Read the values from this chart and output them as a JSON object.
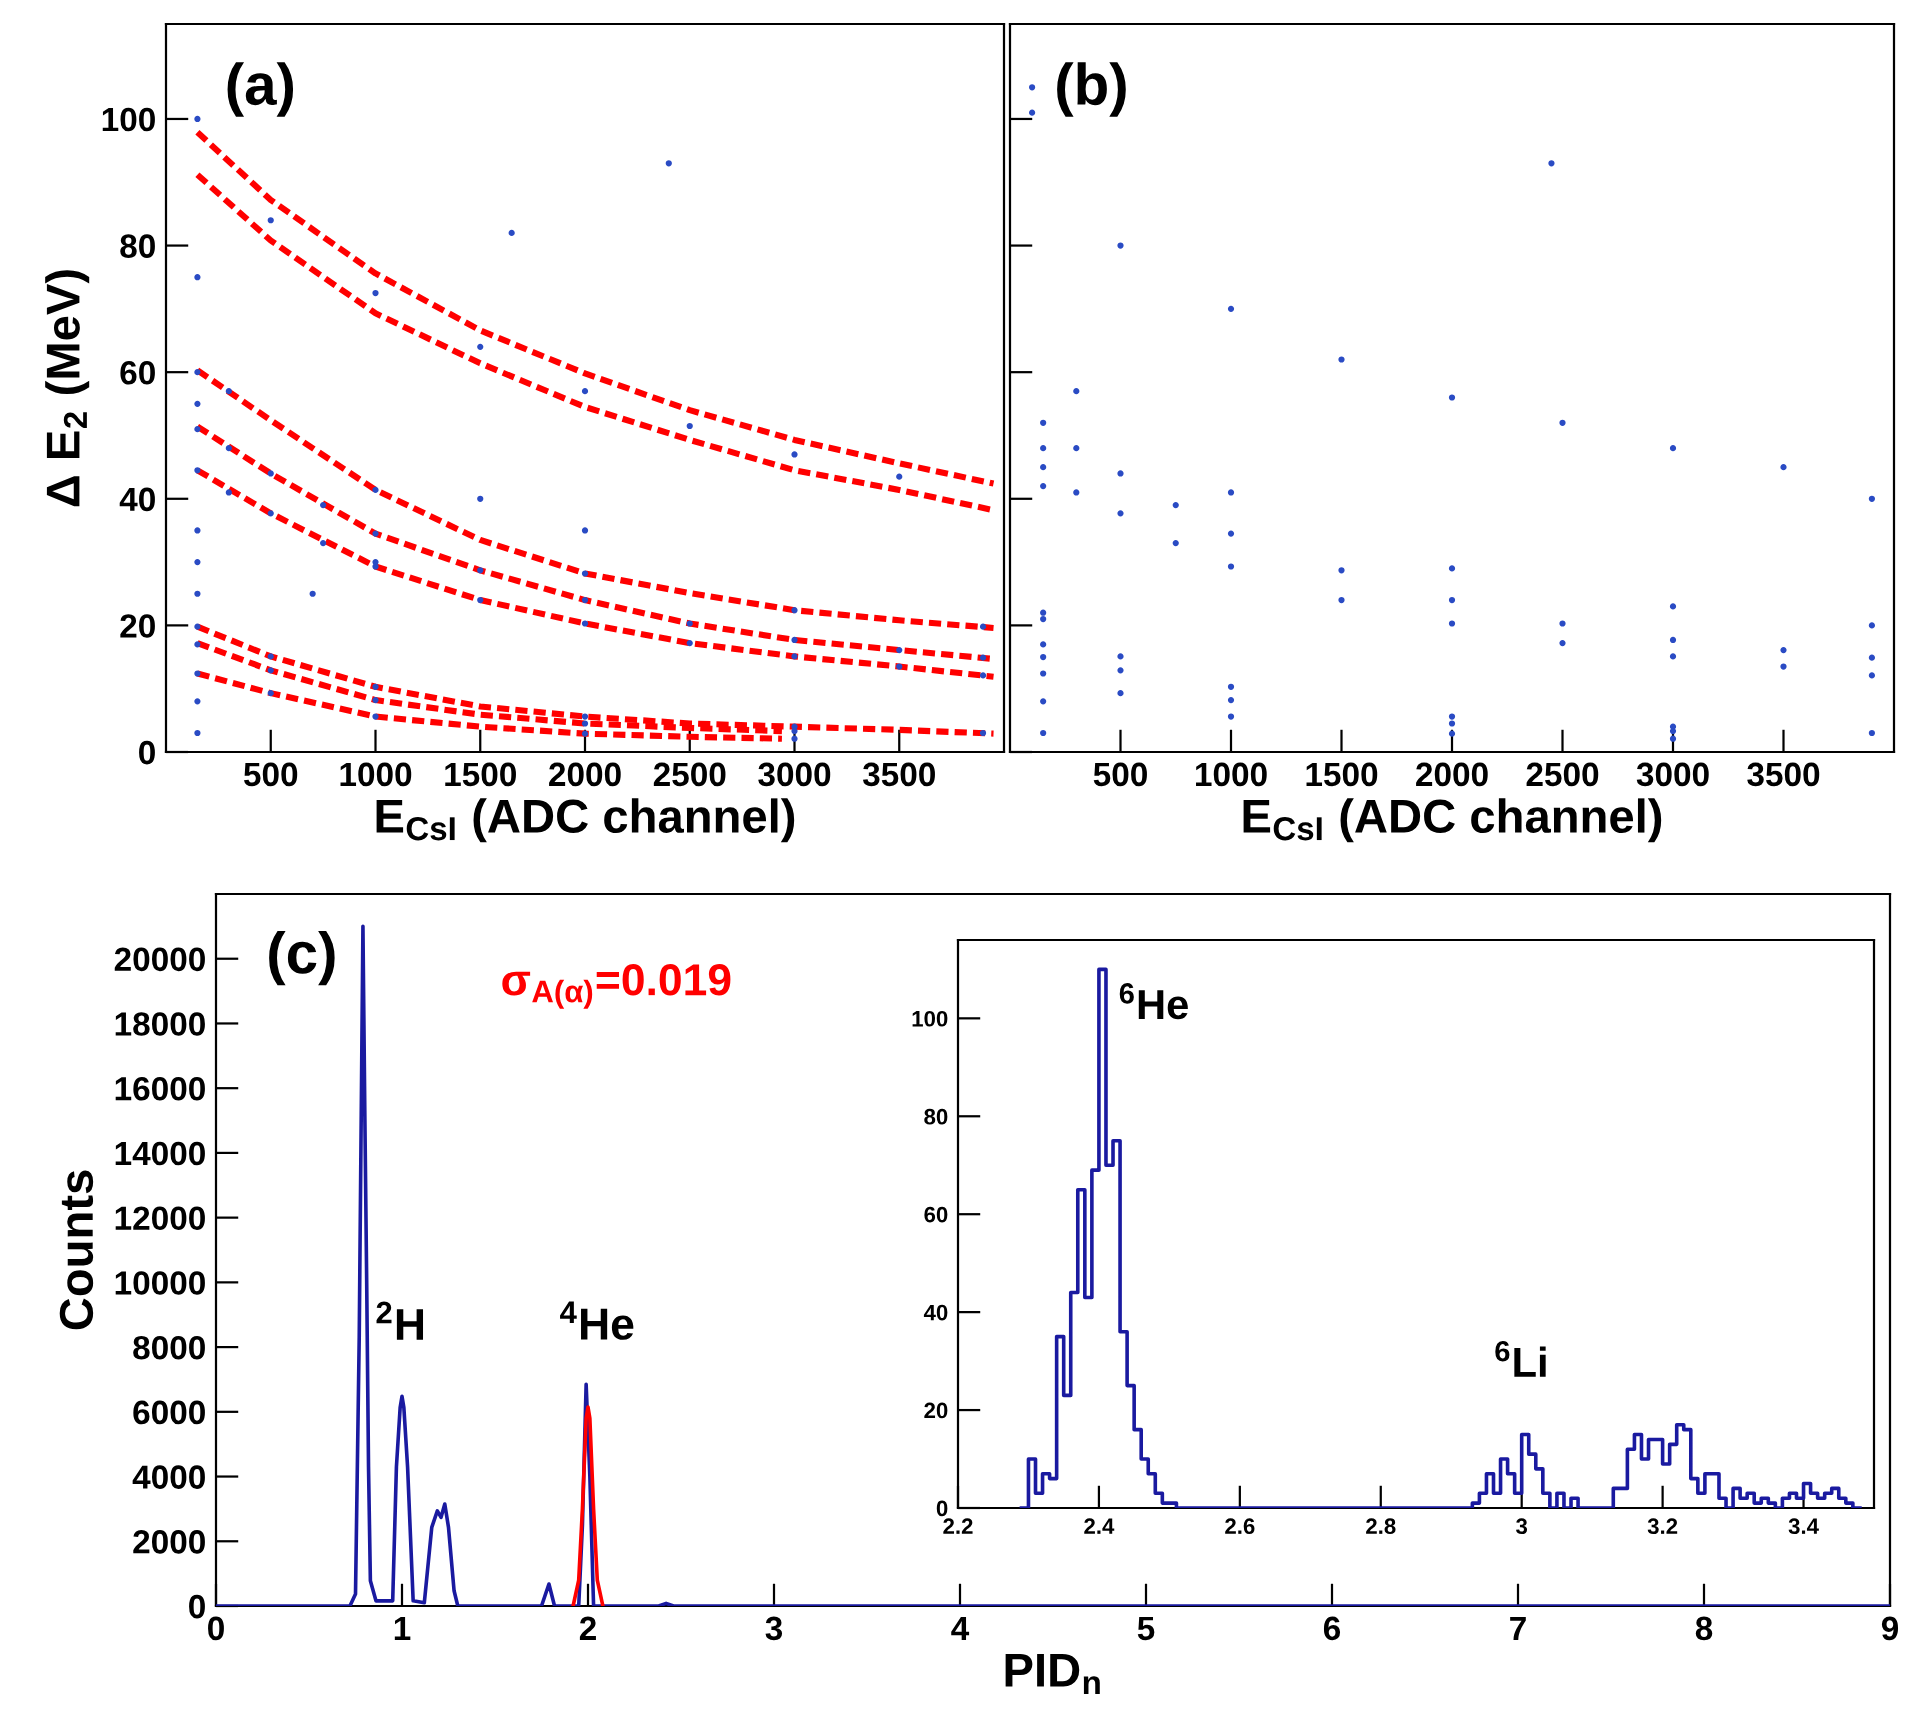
{
  "chart_data": [
    {
      "type": "scatter",
      "xlabel": "E$_{CsI}$ (ADC channel)",
      "ylabel": "Δ E$_{2}$ (MeV)",
      "annotations": [
        "(a)"
      ],
      "xlim": [
        0,
        4000
      ],
      "xticks": [
        500,
        1000,
        1500,
        2000,
        2500,
        3000,
        3500
      ],
      "ylim": [
        0,
        115
      ],
      "yticks": [
        0,
        20,
        40,
        60,
        80,
        100
      ],
      "series": [
        {
          "color": "#2a4bc4",
          "x": [
            150,
            300,
            500,
            750,
            1000,
            1500,
            2000,
            2500,
            3000,
            3500,
            3900,
            150,
            300,
            500,
            750,
            1000,
            1500,
            2000,
            2500,
            3000,
            3500,
            3900,
            300,
            1000,
            2000,
            3000,
            3900,
            500,
            1000,
            1500,
            2000,
            2500,
            3000,
            3500,
            150,
            500,
            1000,
            2000,
            3000,
            3900,
            150,
            500,
            1000,
            2000,
            3000,
            150,
            500,
            1000,
            2000,
            3000,
            150,
            150,
            150,
            150,
            150,
            150,
            150,
            150,
            150,
            2400,
            1650,
            1000,
            700,
            1500,
            2000
          ],
          "values": [
            51,
            48,
            44,
            39,
            34.5,
            28.7,
            24,
            20.3,
            17.7,
            16.1,
            14.9,
            44.5,
            41,
            37.7,
            33,
            29.3,
            24,
            20.3,
            17.2,
            15.1,
            13.5,
            12.1,
            57,
            41.4,
            28.2,
            22.4,
            19.8,
            84,
            72.5,
            64,
            57,
            51.5,
            47,
            43.5,
            19.8,
            15.1,
            10.3,
            5.6,
            4,
            3,
            17,
            12.9,
            8.2,
            4.5,
            3.3,
            12.4,
            9.3,
            5.6,
            2.9,
            2.1,
            3,
            8,
            25,
            30,
            35,
            55,
            60,
            75,
            100,
            93,
            82,
            30,
            25,
            40,
            35
          ]
        },
        {
          "type": "line",
          "line_style": "dashed",
          "color": "#ff0000",
          "x": [
            150,
            500,
            1000,
            1500,
            2000,
            2500,
            3000,
            3500,
            3950
          ],
          "values": [
            97.9,
            87.2,
            75.6,
            66.6,
            59.8,
            54,
            49.3,
            45.6,
            42.4
          ]
        },
        {
          "type": "line",
          "line_style": "dashed",
          "color": "#ff0000",
          "x": [
            150,
            500,
            1000,
            1500,
            2000,
            2500,
            3000,
            3500,
            3950
          ],
          "values": [
            91.2,
            80.8,
            69.3,
            61.4,
            54.5,
            49.3,
            44.5,
            41.4,
            38.2
          ]
        },
        {
          "type": "line",
          "line_style": "dashed",
          "color": "#ff0000",
          "x": [
            150,
            500,
            1000,
            1500,
            2000,
            2500,
            3000,
            3500,
            3950
          ],
          "values": [
            60.3,
            52.4,
            41.4,
            33.5,
            28.2,
            25.1,
            22.4,
            20.8,
            19.6
          ]
        },
        {
          "type": "line",
          "line_style": "dashed",
          "color": "#ff0000",
          "x": [
            150,
            500,
            1000,
            1500,
            2000,
            2500,
            3000,
            3500,
            3950
          ],
          "values": [
            51.4,
            44,
            34.5,
            28.7,
            24,
            20.3,
            17.7,
            16.1,
            14.7
          ]
        },
        {
          "type": "line",
          "line_style": "dashed",
          "color": "#ff0000",
          "x": [
            150,
            500,
            1000,
            1500,
            2000,
            2500,
            3000,
            3500,
            3950
          ],
          "values": [
            44.5,
            37.7,
            29.3,
            24,
            20.3,
            17.2,
            15.1,
            13.5,
            11.9
          ]
        },
        {
          "type": "line",
          "line_style": "dashed",
          "color": "#ff0000",
          "x": [
            150,
            500,
            1000,
            1500,
            2000,
            2500,
            3000,
            3500,
            3950
          ],
          "values": [
            19.8,
            15.1,
            10.3,
            7.2,
            5.6,
            4.5,
            4,
            3.5,
            2.9
          ]
        },
        {
          "type": "line",
          "line_style": "dashed",
          "color": "#ff0000",
          "x": [
            150,
            500,
            1000,
            1500,
            2000,
            2500,
            2940
          ],
          "values": [
            17.2,
            12.9,
            8.2,
            5.9,
            4.5,
            3.8,
            3.3
          ]
        },
        {
          "type": "line",
          "line_style": "dashed",
          "color": "#ff0000",
          "x": [
            150,
            500,
            1000,
            1500,
            2000,
            2500,
            2940
          ],
          "values": [
            12.4,
            9.3,
            5.6,
            4,
            2.9,
            2.4,
            2.1
          ]
        }
      ]
    },
    {
      "type": "scatter",
      "xlabel": "E$_{CsI}$ (ADC channel)",
      "annotations": [
        "(b)"
      ],
      "tick_labels": "x",
      "xlim": [
        0,
        4000
      ],
      "xticks": [
        500,
        1000,
        1500,
        2000,
        2500,
        3000,
        3500
      ],
      "ylim": [
        0,
        115
      ],
      "yticks": [
        0,
        20,
        40,
        60,
        80,
        100
      ],
      "series": [
        {
          "color": "#2a4bc4",
          "x": [
            150,
            300,
            500,
            750,
            1000,
            1500,
            2000,
            2500,
            3000,
            3500,
            3900,
            150,
            300,
            500,
            750,
            1000,
            1500,
            2000,
            2500,
            3000,
            3500,
            3900,
            300,
            1000,
            2000,
            3000,
            3900,
            500,
            1000,
            1500,
            2000,
            2500,
            3000,
            3500,
            3900,
            150,
            500,
            1000,
            2000,
            3000,
            3900,
            150,
            500,
            1000,
            2000,
            3000,
            150,
            500,
            1000,
            2000,
            3000,
            150,
            150,
            150,
            150,
            150,
            150,
            100,
            100,
            2450
          ],
          "values": [
            52,
            48,
            44,
            39,
            34.5,
            28.7,
            24,
            20.3,
            17.7,
            16.1,
            14.9,
            45,
            41,
            37.7,
            33,
            29.3,
            24,
            20.3,
            17.2,
            15.1,
            13.5,
            12.1,
            57,
            41,
            29,
            23,
            20,
            80,
            70,
            62,
            56,
            52,
            48,
            45,
            40,
            21,
            15.1,
            10.3,
            5.6,
            4,
            3,
            17,
            12.9,
            8.2,
            4.5,
            3.3,
            12.4,
            9.3,
            5.6,
            2.9,
            2.1,
            3,
            8,
            15,
            22,
            42,
            48,
            105,
            101,
            93
          ]
        }
      ]
    },
    {
      "type": "line",
      "xlabel": "PID$_{n}$",
      "ylabel": "Counts",
      "annotations": [
        "(c)",
        "σ$_{A(α)}$=0.019",
        "$^{2}$H",
        "$^{4}$He"
      ],
      "xlim": [
        0,
        9
      ],
      "xticks": [
        0,
        1,
        2,
        3,
        4,
        5,
        6,
        7,
        8,
        9
      ],
      "ylim": [
        0,
        22000
      ],
      "yticks": [
        0,
        2000,
        4000,
        6000,
        8000,
        10000,
        12000,
        14000,
        16000,
        18000,
        20000
      ],
      "series": [
        {
          "color": "#1a1aa0",
          "x": [
            0,
            0.7,
            0.72,
            0.75,
            0.77,
            0.79,
            0.8,
            0.81,
            0.82,
            0.83,
            0.86,
            0.95,
            0.97,
            0.99,
            1.0,
            1.01,
            1.03,
            1.06,
            1.12,
            1.16,
            1.19,
            1.21,
            1.23,
            1.25,
            1.28,
            1.3,
            1.75,
            1.79,
            1.82,
            1.95,
            1.97,
            1.99,
            2.01,
            2.03,
            2.38,
            2.42,
            2.46,
            9
          ],
          "values": [
            0,
            0,
            0,
            370,
            8300,
            21000,
            15300,
            10100,
            4300,
            780,
            160,
            160,
            4300,
            6130,
            6480,
            6130,
            4300,
            160,
            100,
            2430,
            2940,
            2740,
            3150,
            2430,
            470,
            0,
            0,
            680,
            0,
            0,
            2500,
            6850,
            4000,
            0,
            0,
            80,
            0,
            0
          ]
        },
        {
          "color": "#ff0000",
          "x": [
            1.92,
            1.95,
            1.97,
            1.99,
            2.0,
            2.01,
            2.03,
            2.05,
            2.08
          ],
          "values": [
            0,
            800,
            3000,
            5800,
            6150,
            5800,
            3000,
            800,
            0
          ]
        }
      ]
    },
    {
      "type": "step",
      "annotations": [
        "$^{6}$He",
        "$^{6}$Li"
      ],
      "xlim": [
        2.2,
        3.5
      ],
      "xticks": [
        2.2,
        2.4,
        2.6,
        2.8,
        3,
        3.2,
        3.4
      ],
      "ylim": [
        0,
        116
      ],
      "yticks": [
        0,
        20,
        40,
        60,
        80,
        100
      ],
      "series": [
        {
          "color": "#1a1aa0",
          "x": [
            2.29,
            2.3,
            2.31,
            2.32,
            2.33,
            2.34,
            2.35,
            2.36,
            2.37,
            2.38,
            2.39,
            2.4,
            2.41,
            2.42,
            2.43,
            2.44,
            2.45,
            2.46,
            2.47,
            2.48,
            2.49,
            2.5,
            2.51,
            2.52,
            2.53,
            2.54,
            2.55,
            2.56,
            2.57,
            2.58,
            2.59,
            2.6,
            2.61,
            2.62,
            2.63,
            2.64,
            2.65,
            2.66,
            2.67,
            2.68,
            2.69,
            2.7,
            2.71,
            2.72,
            2.73,
            2.74,
            2.75,
            2.76,
            2.77,
            2.78,
            2.79,
            2.8,
            2.81,
            2.82,
            2.83,
            2.84,
            2.85,
            2.86,
            2.87,
            2.88,
            2.89,
            2.9,
            2.91,
            2.92,
            2.93,
            2.94,
            2.95,
            2.96,
            2.97,
            2.98,
            2.99,
            3.0,
            3.01,
            3.02,
            3.03,
            3.04,
            3.05,
            3.06,
            3.07,
            3.08,
            3.09,
            3.1,
            3.11,
            3.12,
            3.13,
            3.14,
            3.15,
            3.16,
            3.17,
            3.18,
            3.19,
            3.2,
            3.21,
            3.22,
            3.23,
            3.24,
            3.25,
            3.26,
            3.27,
            3.28,
            3.29,
            3.3,
            3.31,
            3.32,
            3.33,
            3.34,
            3.35,
            3.36,
            3.37,
            3.38,
            3.39,
            3.4,
            3.41,
            3.42,
            3.43,
            3.44,
            3.45,
            3.46,
            3.47,
            3.48
          ],
          "values": [
            0,
            10,
            3,
            7,
            6,
            35,
            23,
            44,
            65,
            43,
            69,
            110,
            70,
            75,
            36,
            25,
            16,
            10,
            7,
            3,
            1,
            1,
            0,
            0,
            0,
            0,
            0,
            0,
            0,
            0,
            0,
            0,
            0,
            0,
            0,
            0,
            0,
            0,
            0,
            0,
            0,
            0,
            0,
            0,
            0,
            0,
            0,
            0,
            0,
            0,
            0,
            0,
            0,
            0,
            0,
            0,
            0,
            0,
            0,
            0,
            0,
            0,
            0,
            0,
            1,
            3,
            7,
            3,
            10,
            7,
            3,
            15,
            11,
            8,
            3,
            0,
            3,
            0,
            2,
            0,
            0,
            0,
            0,
            0,
            4,
            4,
            12,
            15,
            10,
            14,
            14,
            9,
            13,
            17,
            16,
            6,
            3,
            7,
            7,
            2,
            0,
            4,
            2,
            3,
            1,
            2,
            1,
            0,
            2,
            3,
            2,
            5,
            3,
            2,
            3,
            4,
            2,
            1,
            0,
            0
          ]
        }
      ]
    }
  ]
}
